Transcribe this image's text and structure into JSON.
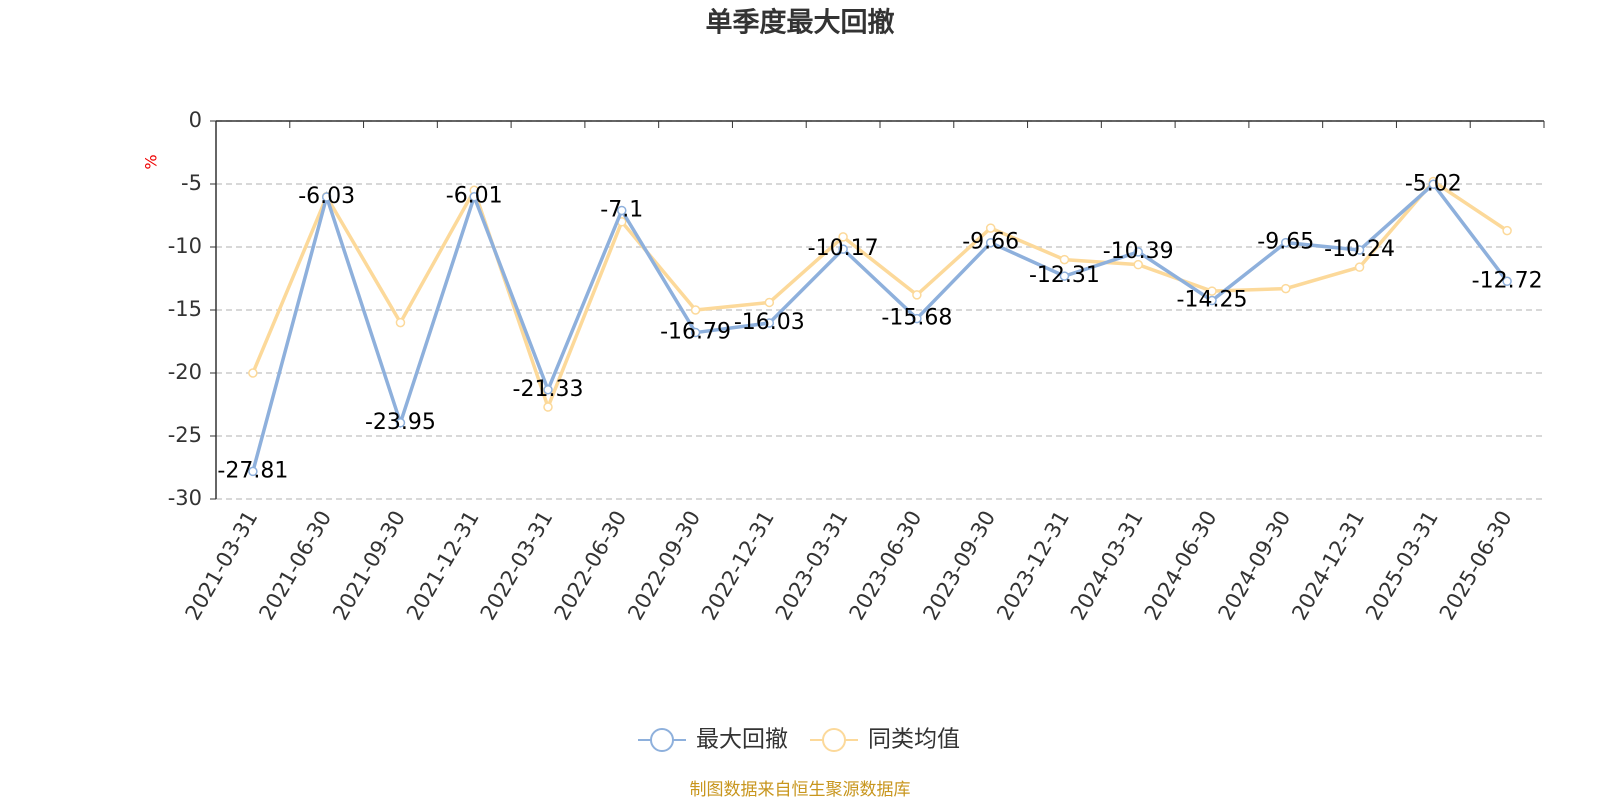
{
  "chart_data": {
    "type": "line",
    "title": "单季度最大回撤",
    "y_label": "%",
    "source": "制图数据来自恒生聚源数据库",
    "categories": [
      "2021-03-31",
      "2021-06-30",
      "2021-09-30",
      "2021-12-31",
      "2022-03-31",
      "2022-06-30",
      "2022-09-30",
      "2022-12-31",
      "2023-03-31",
      "2023-06-30",
      "2023-09-30",
      "2023-12-31",
      "2024-03-31",
      "2024-06-30",
      "2024-09-30",
      "2024-12-31",
      "2025-03-31",
      "2025-06-30"
    ],
    "series": [
      {
        "name": "最大回撤",
        "color": "#8eb0dc",
        "data_labels": true,
        "values": [
          -27.81,
          -6.03,
          -23.95,
          -6.01,
          -21.33,
          -7.1,
          -16.79,
          -16.03,
          -10.17,
          -15.68,
          -9.66,
          -12.31,
          -10.39,
          -14.25,
          -9.65,
          -10.24,
          -5.02,
          -12.72
        ]
      },
      {
        "name": "同类均值",
        "color": "#fcd99a",
        "data_labels": false,
        "values": [
          -20,
          -6,
          -16,
          -5.5,
          -22.7,
          -8,
          -15,
          -14.4,
          -9.2,
          -13.8,
          -8.5,
          -11,
          -11.4,
          -13.5,
          -13.3,
          -11.6,
          -4.8,
          -8.7
        ]
      }
    ],
    "ylim": [
      -30,
      0
    ],
    "yticks": [
      0,
      -5,
      -10,
      -15,
      -20,
      -25,
      -30
    ],
    "grid": true
  }
}
